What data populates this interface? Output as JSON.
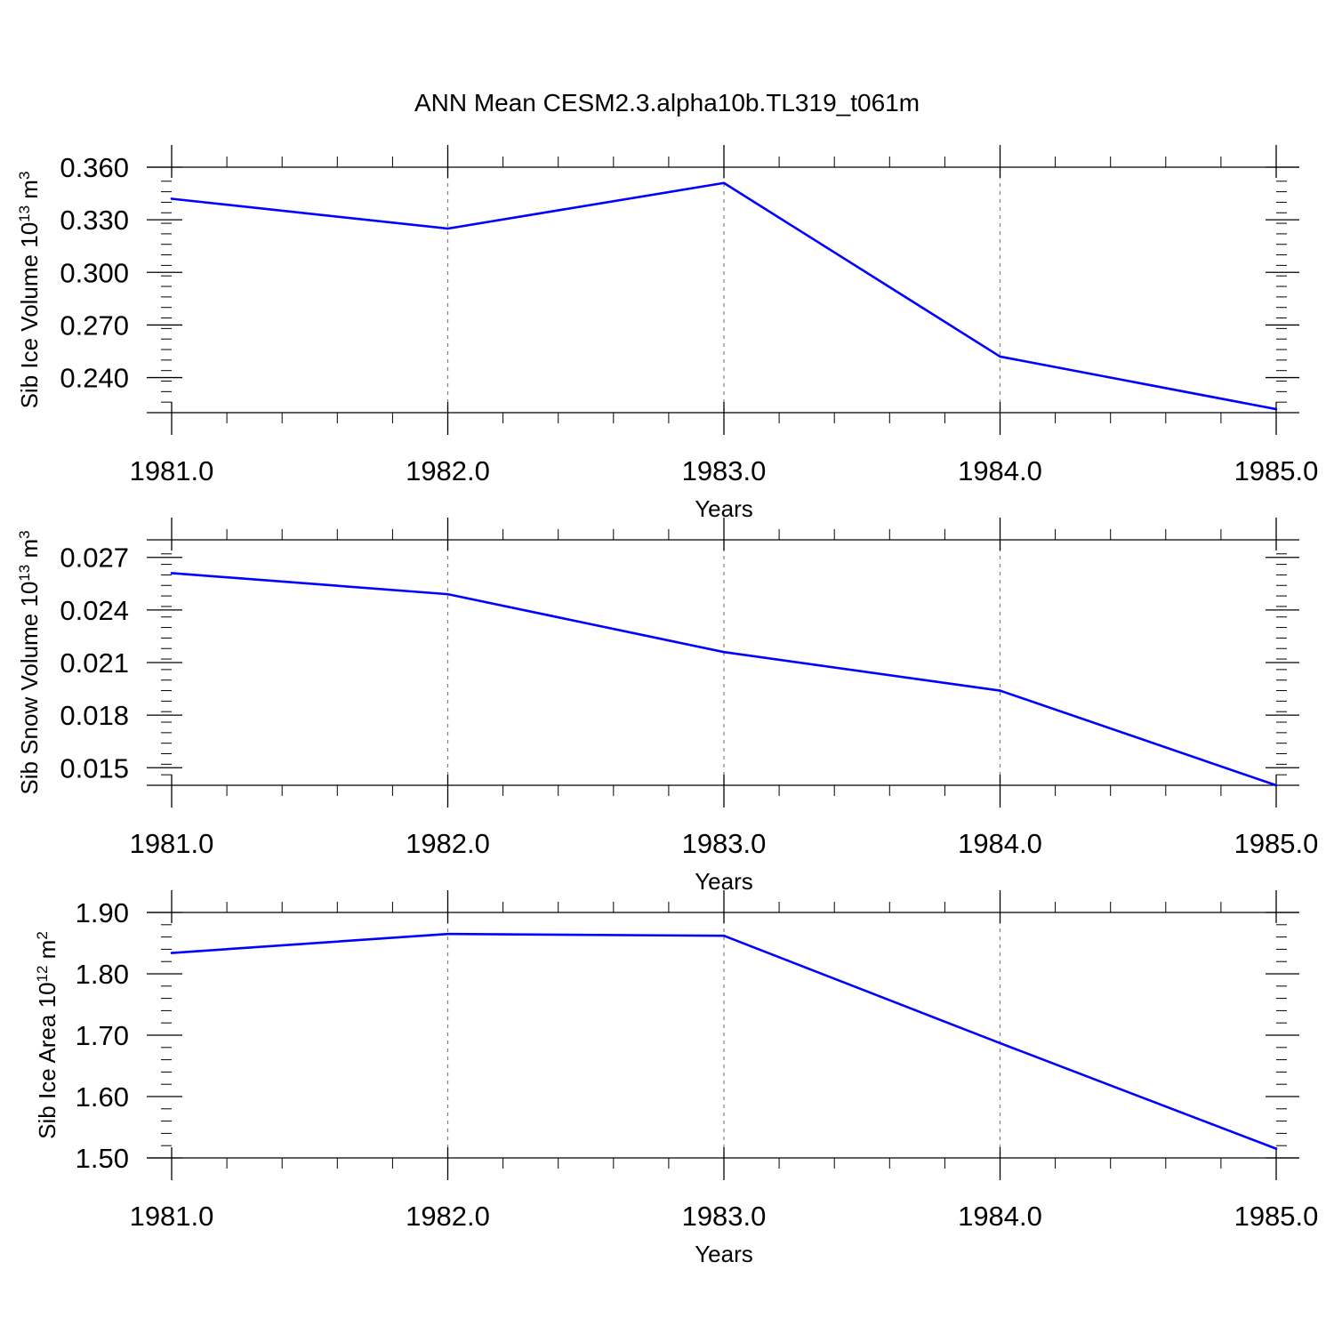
{
  "figure": {
    "title": "ANN Mean CESM2.3.alpha10b.TL319_t061m"
  },
  "style": {
    "line_color": "#0000ff",
    "axis_color": "#000000",
    "grid_color": "#808080"
  },
  "chart_data": [
    {
      "type": "line",
      "title": "",
      "xlabel": "Years",
      "ylabel": {
        "text": "Sib Ice Volume 10",
        "exp1": "13",
        "unit": " m",
        "exp2": "3"
      },
      "x": [
        1981.0,
        1982.0,
        1983.0,
        1984.0,
        1985.0
      ],
      "xlim": [
        1981.0,
        1985.0
      ],
      "xticks": [
        1981.0,
        1982.0,
        1983.0,
        1984.0,
        1985.0
      ],
      "xtick_labels": [
        "1981.0",
        "1982.0",
        "1983.0",
        "1984.0",
        "1985.0"
      ],
      "ylim": [
        0.22,
        0.36
      ],
      "yticks": [
        0.24,
        0.27,
        0.3,
        0.33,
        0.36
      ],
      "ytick_labels": [
        "0.240",
        "0.270",
        "0.300",
        "0.330",
        "0.360"
      ],
      "y_minor_step": 0.006,
      "grid": "vertical dashed at major x ticks",
      "series": [
        {
          "values": [
            0.342,
            0.325,
            0.351,
            0.252,
            0.222
          ]
        }
      ]
    },
    {
      "type": "line",
      "title": "",
      "xlabel": "Years",
      "ylabel": {
        "text": "Sib Snow Volume 10",
        "exp1": "13",
        "unit": " m",
        "exp2": "3"
      },
      "x": [
        1981.0,
        1982.0,
        1983.0,
        1984.0,
        1985.0
      ],
      "xlim": [
        1981.0,
        1985.0
      ],
      "xticks": [
        1981.0,
        1982.0,
        1983.0,
        1984.0,
        1985.0
      ],
      "xtick_labels": [
        "1981.0",
        "1982.0",
        "1983.0",
        "1984.0",
        "1985.0"
      ],
      "ylim": [
        0.014,
        0.028
      ],
      "yticks": [
        0.015,
        0.018,
        0.021,
        0.024,
        0.027
      ],
      "ytick_labels": [
        "0.015",
        "0.018",
        "0.021",
        "0.024",
        "0.027"
      ],
      "y_minor_step": 0.0006,
      "grid": "vertical dashed at major x ticks",
      "series": [
        {
          "values": [
            0.0261,
            0.0249,
            0.0216,
            0.0194,
            0.014
          ]
        }
      ]
    },
    {
      "type": "line",
      "title": "",
      "xlabel": "Years",
      "ylabel": {
        "text": "Sib Ice Area 10",
        "exp1": "12",
        "unit": " m",
        "exp2": "2"
      },
      "x": [
        1981.0,
        1982.0,
        1983.0,
        1984.0,
        1985.0
      ],
      "xlim": [
        1981.0,
        1985.0
      ],
      "xticks": [
        1981.0,
        1982.0,
        1983.0,
        1984.0,
        1985.0
      ],
      "xtick_labels": [
        "1981.0",
        "1982.0",
        "1983.0",
        "1984.0",
        "1985.0"
      ],
      "ylim": [
        1.5,
        1.9
      ],
      "yticks": [
        1.5,
        1.6,
        1.7,
        1.8,
        1.9
      ],
      "ytick_labels": [
        "1.50",
        "1.60",
        "1.70",
        "1.80",
        "1.90"
      ],
      "y_minor_step": 0.02,
      "grid": "vertical dashed at major x ticks",
      "series": [
        {
          "values": [
            1.834,
            1.865,
            1.862,
            1.687,
            1.515
          ]
        }
      ]
    }
  ]
}
